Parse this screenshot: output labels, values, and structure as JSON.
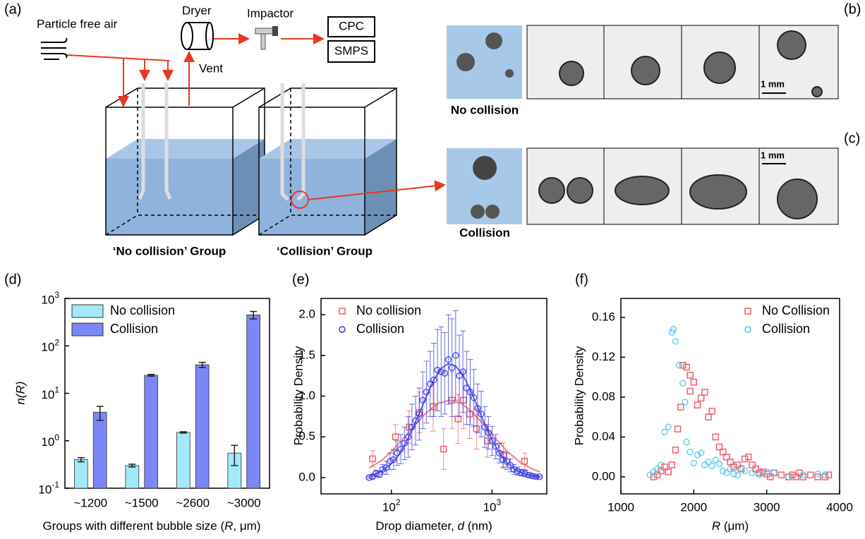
{
  "diagram": {
    "panel_labels": [
      "(a)",
      "(b)",
      "(c)",
      "(d)",
      "(e)",
      "(f)"
    ],
    "air_label": "Particle free air",
    "dryer": "Dryer",
    "impactor": "Impactor",
    "cpc": "CPC",
    "smps": "SMPS",
    "vent": "Vent",
    "group_no_collision": "‘No collision’ Group",
    "group_collision": "‘Collision’ Group",
    "no_collision_caption": "No collision",
    "collision_caption": "Collision",
    "scale_bar_b": "1 mm",
    "scale_bar_c": "1 mm"
  },
  "chart_data": [
    {
      "type": "bar",
      "categories": [
        "~1200",
        "~1500",
        "~2600",
        "~3000"
      ],
      "ylabel": "n(R)",
      "xlabel": [
        "Groups with different bubble size (",
        "R",
        ", μm)"
      ],
      "log_y": true,
      "ylim": [
        0.1,
        1000
      ],
      "yticks": [
        {
          "value": 0.1,
          "label": "10",
          "exponent": "-1"
        },
        {
          "value": 1,
          "label": "10",
          "exponent": "0"
        },
        {
          "value": 10,
          "label": "10",
          "exponent": "1"
        },
        {
          "value": 100,
          "label": "10",
          "exponent": "2"
        },
        {
          "value": 1000,
          "label": "10",
          "exponent": "3"
        }
      ],
      "legend": "upper left",
      "series": [
        {
          "name": "No collision",
          "color": "#a3e9f8",
          "values": [
            0.4,
            0.3,
            1.5,
            0.55
          ],
          "errors": [
            0.04,
            0.02,
            0.05,
            0.25
          ]
        },
        {
          "name": "Collision",
          "color": "#7c86f4",
          "values": [
            4,
            24,
            40,
            450
          ],
          "errors": [
            1.3,
            1,
            5,
            80
          ]
        }
      ]
    },
    {
      "type": "scatter",
      "ylabel": "Probability Density",
      "xlabel": [
        "Drop diameter, ",
        "d",
        " (nm)"
      ],
      "log_x": true,
      "xlim": [
        20,
        3500
      ],
      "xticks": [
        {
          "value": 100,
          "label": "10",
          "exponent": "2"
        },
        {
          "value": 1000,
          "label": "10",
          "exponent": "3"
        }
      ],
      "ylim": [
        -0.2,
        2.2
      ],
      "yticks": [
        {
          "value": 0,
          "label": "0.0"
        },
        0.5,
        {
          "value": 1,
          "label": "1.0"
        },
        1.5,
        {
          "value": 2,
          "label": "2.0"
        }
      ],
      "legend": "upper left",
      "series": [
        {
          "name": "No collision",
          "color": "#f0606a",
          "marker": "square",
          "x": [
            65,
            110,
            150,
            190,
            260,
            330,
            400,
            460,
            520,
            600,
            700,
            900,
            1300,
            2100
          ],
          "values": [
            0.23,
            0.5,
            0.62,
            0.8,
            0.87,
            0.35,
            0.95,
            0.72,
            0.95,
            0.78,
            0.6,
            0.45,
            0.28,
            0.2
          ],
          "errors": [
            0.1,
            0.15,
            0.2,
            0.25,
            0.3,
            0.25,
            0.35,
            0.3,
            0.35,
            0.3,
            0.25,
            0.2,
            0.15,
            0.1
          ],
          "fit_x": [
            60,
            80,
            100,
            130,
            170,
            220,
            290,
            380,
            500,
            650,
            850,
            1100,
            1450,
            1900,
            2500,
            3000
          ],
          "fit_values": [
            0.116,
            0.21,
            0.32,
            0.47,
            0.64,
            0.79,
            0.91,
            0.95,
            0.91,
            0.79,
            0.64,
            0.47,
            0.31,
            0.19,
            0.106,
            0.068
          ]
        },
        {
          "name": "Collision",
          "color": "#3a3ae0",
          "marker": "circle",
          "x": [
            60,
            65,
            70,
            76,
            82,
            89,
            97,
            105,
            114,
            124,
            135,
            147,
            160,
            174,
            189,
            205,
            223,
            243,
            264,
            287,
            312,
            339,
            368,
            400,
            435,
            473,
            514,
            559,
            607,
            660,
            718,
            780,
            848,
            922,
            1002,
            1089,
            1184,
            1287,
            1399,
            1521,
            1653,
            1797,
            1953,
            2123,
            2308,
            2509,
            2727,
            2965
          ],
          "values": [
            0,
            0.01,
            0.05,
            0.04,
            0.1,
            0.12,
            0.2,
            0.22,
            0.3,
            0.35,
            0.42,
            0.5,
            0.62,
            0.7,
            0.78,
            0.95,
            1.05,
            1.15,
            1.2,
            1.32,
            1.3,
            1.28,
            1.45,
            1.35,
            1.5,
            1.25,
            1.3,
            1.1,
            1.05,
            0.98,
            0.85,
            0.78,
            0.62,
            0.55,
            0.45,
            0.38,
            0.3,
            0.22,
            0.2,
            0.15,
            0.1,
            0.08,
            0.06,
            0.05,
            0.03,
            0.02,
            0.01,
            0.01
          ],
          "errors": [
            0.01,
            0.02,
            0.04,
            0.04,
            0.06,
            0.08,
            0.1,
            0.12,
            0.15,
            0.18,
            0.2,
            0.25,
            0.28,
            0.3,
            0.32,
            0.35,
            0.38,
            0.4,
            0.45,
            0.5,
            0.55,
            0.5,
            0.55,
            0.6,
            0.55,
            0.5,
            0.5,
            0.45,
            0.4,
            0.35,
            0.3,
            0.28,
            0.25,
            0.2,
            0.18,
            0.15,
            0.12,
            0.1,
            0.1,
            0.08,
            0.06,
            0.05,
            0.04,
            0.04,
            0.03,
            0.02,
            0.02,
            0.01
          ],
          "fit_x": [
            60,
            70,
            82,
            97,
            114,
            135,
            160,
            189,
            223,
            264,
            312,
            368,
            435,
            514,
            607,
            718,
            848,
            1002,
            1184,
            1399,
            1653,
            1953,
            2308,
            2727,
            2965
          ],
          "fit_values": [
            0.025,
            0.047,
            0.087,
            0.155,
            0.251,
            0.394,
            0.577,
            0.786,
            1.0,
            1.2,
            1.34,
            1.4,
            1.37,
            1.26,
            1.08,
            0.87,
            0.65,
            0.46,
            0.3,
            0.187,
            0.109,
            0.059,
            0.03,
            0.014,
            0.009
          ]
        }
      ]
    },
    {
      "type": "scatter",
      "ylabel": "Probability Density",
      "xlabel": [
        "R",
        " (μm)"
      ],
      "xlim": [
        1000,
        4000
      ],
      "xticks": [
        1000,
        2000,
        3000,
        4000
      ],
      "ylim": [
        -0.017,
        0.179
      ],
      "yticks": [
        {
          "value": 0,
          "label": "0.00"
        },
        0.04,
        0.08,
        0.12,
        0.16
      ],
      "legend": "upper right",
      "series": [
        {
          "name": "No Collision",
          "color": "#f0606a",
          "marker": "square",
          "x": [
            1450,
            1500,
            1550,
            1600,
            1650,
            1700,
            1750,
            1780,
            1820,
            1850,
            1900,
            1950,
            1950,
            2000,
            2050,
            2100,
            2150,
            2200,
            2250,
            2300,
            2350,
            2400,
            2450,
            2500,
            2550,
            2600,
            2650,
            2700,
            2750,
            2800,
            2850,
            2900,
            2950,
            3000,
            3050,
            3100,
            3200,
            3300,
            3350,
            3400,
            3450,
            3500,
            3600,
            3700,
            3800,
            3850
          ],
          "values": [
            0,
            0.002,
            0.006,
            0.01,
            0.005,
            0.012,
            0.027,
            0.048,
            0.07,
            0.112,
            0.11,
            0.102,
            0.086,
            0.095,
            0.072,
            0.079,
            0.085,
            0.06,
            0.066,
            0.04,
            0.03,
            0.025,
            0.02,
            0.015,
            0.01,
            0.012,
            0.008,
            0.018,
            0.02,
            0.012,
            0.008,
            0.004,
            0.005,
            0.003,
            0,
            0.004,
            0.002,
            0,
            0.002,
            0,
            0.004,
            0,
            0.002,
            0,
            0,
            0.002
          ]
        },
        {
          "name": "Collision",
          "color": "#4cc3ec",
          "marker": "circle",
          "x": [
            1400,
            1450,
            1500,
            1550,
            1600,
            1650,
            1700,
            1720,
            1750,
            1800,
            1850,
            1880,
            1900,
            1950,
            2000,
            2050,
            2100,
            2150,
            2200,
            2250,
            2300,
            2350,
            2400,
            2450,
            2500,
            2550,
            2600,
            2650,
            2700,
            2800,
            2900,
            3000,
            3100,
            3300,
            3500,
            3700,
            3800
          ],
          "values": [
            0.002,
            0.005,
            0.008,
            0.012,
            0.045,
            0.05,
            0.145,
            0.148,
            0.136,
            0.112,
            0.094,
            0.075,
            0.035,
            0.025,
            0.014,
            0.022,
            0.024,
            0.012,
            0.015,
            0.011,
            0.017,
            0.013,
            0.006,
            0.004,
            0.008,
            0.003,
            0.002,
            0.009,
            0.006,
            0.004,
            0.002,
            0.005,
            0.004,
            0,
            0.002,
            0.003,
            0.002
          ]
        }
      ]
    }
  ]
}
